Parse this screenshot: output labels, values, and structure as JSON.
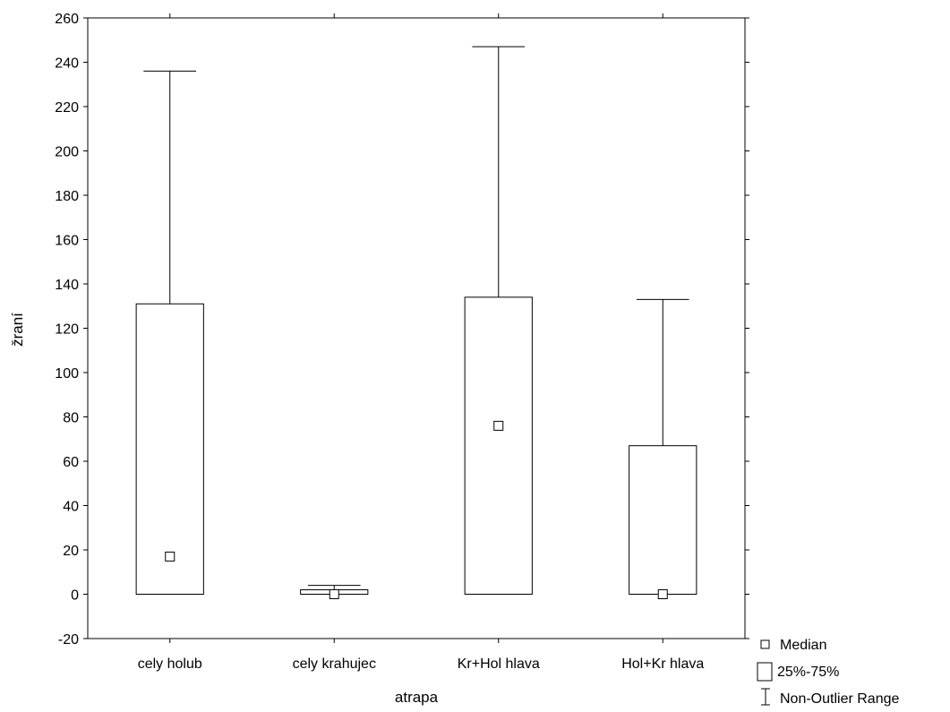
{
  "chart_data": {
    "type": "box",
    "title": "",
    "xlabel": "atrapa",
    "ylabel": "žraní",
    "ylim": [
      -20,
      260
    ],
    "yticks": [
      -20,
      0,
      20,
      40,
      60,
      80,
      100,
      120,
      140,
      160,
      180,
      200,
      220,
      240,
      260
    ],
    "categories": [
      "cely holub",
      "cely krahujec",
      "Kr+Hol hlava",
      "Hol+Kr hlava"
    ],
    "boxes": [
      {
        "category": "cely holub",
        "min": 0,
        "q1": 0,
        "median": 17,
        "q3": 131,
        "max": 236
      },
      {
        "category": "cely krahujec",
        "min": 0,
        "q1": 0,
        "median": 0,
        "q3": 2,
        "max": 4
      },
      {
        "category": "Kr+Hol hlava",
        "min": 0,
        "q1": 0,
        "median": 76,
        "q3": 134,
        "max": 247
      },
      {
        "category": "Hol+Kr hlava",
        "min": 0,
        "q1": 0,
        "median": 0,
        "q3": 67,
        "max": 133
      }
    ],
    "legend": {
      "position": "bottom-right",
      "items": [
        "Median",
        "25%-75%",
        "Non-Outlier Range"
      ]
    },
    "grid": false
  }
}
